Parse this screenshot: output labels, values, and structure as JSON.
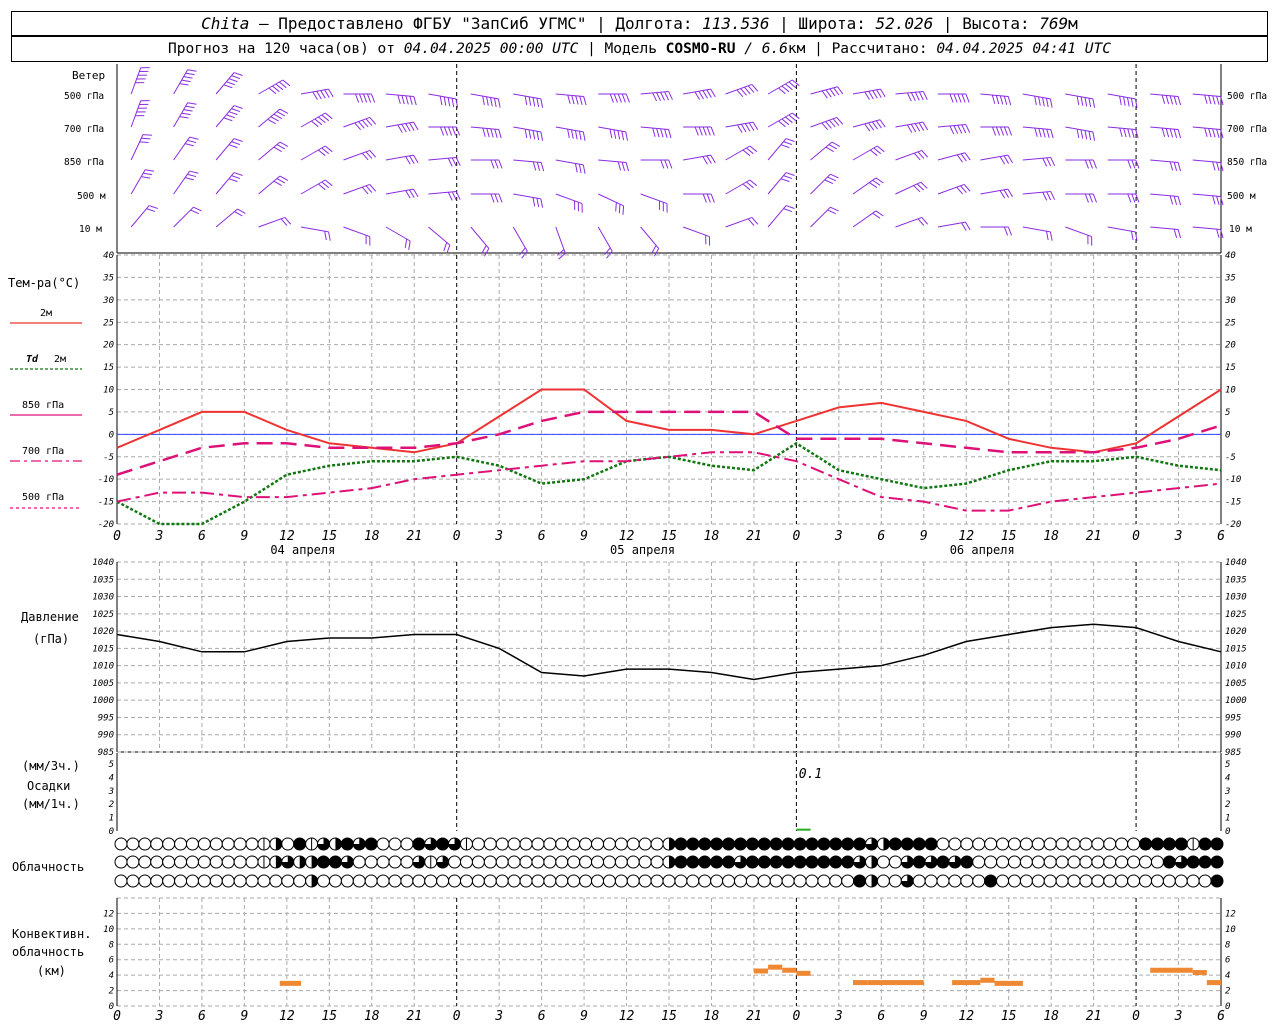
{
  "header": {
    "station": "Chita",
    "provider": " — Предоставлено ФГБУ \"ЗапСиб УГМС\" | Долгота: ",
    "lon": "113.536",
    "lat_label": " | Широта: ",
    "lat": "52.026",
    "alt_label": " | Высота: ",
    "alt": "769",
    "alt_unit": "м",
    "forecast_prefix": "Прогноз на 120 часа(ов) от ",
    "forecast_time": "04.04.2025 00:00 UTC",
    "model_prefix": " | Модель ",
    "model": "COSMO-RU",
    "model_res": " / 6.6",
    "model_res_unit": "км",
    "calc_prefix": " | Рассчитано: ",
    "calc_time": "04.04.2025 04:41 UTC"
  },
  "labels": {
    "wind": "Ветер",
    "lvl500": "500 гПа",
    "lvl700": "700 гПа",
    "lvl850": "850 гПа",
    "lvl500m": "500 м",
    "lvl10m": "10 м",
    "temp_title": "Тем-ра(°C)",
    "t2m": "2м",
    "td": "Td",
    "td2m": "2м",
    "t850": "850 гПа",
    "t700": "700 гПа",
    "t500": "500 гПа",
    "pressure": "Давление",
    "pressure_unit": "(гПа)",
    "precip_3h": "(мм/3ч.)",
    "precip": "Осадки",
    "precip_1h": "(мм/1ч.)",
    "precip_value": "0.1",
    "cloud": "Облачность",
    "conv1": "Конвективн.",
    "conv2": "облачность",
    "conv3": "(км)"
  },
  "time_axis": {
    "hour_ticks": [
      "0",
      "3",
      "6",
      "9",
      "12",
      "15",
      "18",
      "21",
      "0",
      "3",
      "6",
      "9",
      "12",
      "15",
      "18",
      "21",
      "0",
      "3",
      "6",
      "9",
      "12",
      "15",
      "18",
      "21",
      "0",
      "3",
      "6"
    ],
    "dates": [
      "04 апреля",
      "05 апреля",
      "06 апреля"
    ]
  },
  "colors": {
    "wind": "#8a2be2",
    "t2m": "#ee3333",
    "td2m": "#117711",
    "t850": "#dd1177",
    "t700": "#dd1177",
    "t500": "#dd1177",
    "pressure": "#000000",
    "precip": "#22aa22",
    "convective": "#ee8833"
  },
  "chart_data": [
    {
      "type": "line",
      "title": "Тем-ра(°C)",
      "ylim": [
        -20,
        40
      ],
      "yticks": [
        "40",
        "35",
        "30",
        "25",
        "20",
        "15",
        "10",
        "5",
        "0",
        "-5",
        "-10",
        "-15",
        "-20"
      ],
      "x_hours": [
        0,
        3,
        6,
        9,
        12,
        15,
        18,
        21,
        24,
        27,
        30,
        33,
        36,
        39,
        42,
        45,
        48,
        51,
        54,
        57,
        60,
        63,
        66,
        69,
        72,
        75,
        78
      ],
      "series": [
        {
          "name": "2м",
          "values": [
            -3,
            1,
            5,
            5,
            1,
            -2,
            -3,
            -4,
            -2,
            4,
            10,
            10,
            3,
            1,
            1,
            0,
            3,
            6,
            7,
            5,
            3,
            -1,
            -3,
            -4,
            -2,
            4,
            10
          ]
        },
        {
          "name": "Td 2м",
          "values": [
            -15,
            -20,
            -20,
            -15,
            -9,
            -7,
            -6,
            -6,
            -5,
            -7,
            -11,
            -10,
            -6,
            -5,
            -7,
            -8,
            -2,
            -8,
            -10,
            -12,
            -11,
            -8,
            -6,
            -6,
            -5,
            -7,
            -8
          ]
        },
        {
          "name": "850 гПа",
          "values": [
            -9,
            -6,
            -3,
            -2,
            -2,
            -3,
            -3,
            -3,
            -2,
            0,
            3,
            5,
            5,
            5,
            5,
            5,
            -1,
            -1,
            -1,
            -2,
            -3,
            -4,
            -4,
            -4,
            -3,
            -1,
            2
          ]
        },
        {
          "name": "700 гПа",
          "values": [
            -15,
            -13,
            -13,
            -14,
            -14,
            -13,
            -12,
            -10,
            -9,
            -8,
            -7,
            -6,
            -6,
            -5,
            -4,
            -4,
            -6,
            -10,
            -14,
            -15,
            -17,
            -17,
            -15,
            -14,
            -13,
            -12,
            -11
          ]
        },
        {
          "name": "500 гПа",
          "values": []
        }
      ]
    },
    {
      "type": "line",
      "title": "Давление",
      "ylabel": "(гПа)",
      "ylim": [
        985,
        1040
      ],
      "yticks": [
        "1040",
        "1035",
        "1030",
        "1025",
        "1020",
        "1015",
        "1010",
        "1005",
        "1000",
        "995",
        "990",
        "985"
      ],
      "x_hours": [
        0,
        3,
        6,
        9,
        12,
        15,
        18,
        21,
        24,
        27,
        30,
        33,
        36,
        39,
        42,
        45,
        48,
        51,
        54,
        57,
        60,
        63,
        66,
        69,
        72,
        75,
        78
      ],
      "series": [
        {
          "name": "Давление",
          "values": [
            1019,
            1017,
            1014,
            1014,
            1017,
            1018,
            1018,
            1019,
            1019,
            1015,
            1008,
            1007,
            1009,
            1009,
            1008,
            1006,
            1008,
            1009,
            1010,
            1013,
            1017,
            1019,
            1021,
            1022,
            1021,
            1017,
            1014
          ]
        }
      ]
    },
    {
      "type": "bar",
      "title": "Осадки",
      "ylim": [
        0,
        5
      ],
      "yticks": [
        "5",
        "4",
        "3",
        "2",
        "1",
        "0"
      ],
      "x_hours": [
        48
      ],
      "values": [
        0.1
      ]
    },
    {
      "type": "bar",
      "title": "Конвективн. облачность",
      "ylabel": "(км)",
      "ylim": [
        0,
        13
      ],
      "yticks": [
        "12",
        "10",
        "8",
        "6",
        "4",
        "2",
        "0"
      ],
      "segments": [
        {
          "from": 11.5,
          "to": 13,
          "value": 3.0
        },
        {
          "from": 45,
          "to": 46,
          "value": 4.6
        },
        {
          "from": 46,
          "to": 47,
          "value": 5.1
        },
        {
          "from": 47,
          "to": 48,
          "value": 4.7
        },
        {
          "from": 48,
          "to": 49,
          "value": 4.3
        },
        {
          "from": 52,
          "to": 53,
          "value": 3.1
        },
        {
          "from": 53,
          "to": 57,
          "value": 3.1
        },
        {
          "from": 59,
          "to": 61,
          "value": 3.1
        },
        {
          "from": 61,
          "to": 62,
          "value": 3.4
        },
        {
          "from": 62,
          "to": 64,
          "value": 3.0
        },
        {
          "from": 73,
          "to": 76,
          "value": 4.7
        },
        {
          "from": 76,
          "to": 77,
          "value": 4.4
        },
        {
          "from": 77,
          "to": 78,
          "value": 3.1
        }
      ]
    }
  ],
  "cloud_rows": {
    "high": "000000000000120413243400043431000000000000000024444444444444444324444000000000000000004444144",
    "mid": "000000000000123224430000031300000000000000000024444434444444443200343434000000000000000043444",
    "low": "000000000000000020000000000000000000000000000000000000000000004200300000040000000000000000004"
  }
}
